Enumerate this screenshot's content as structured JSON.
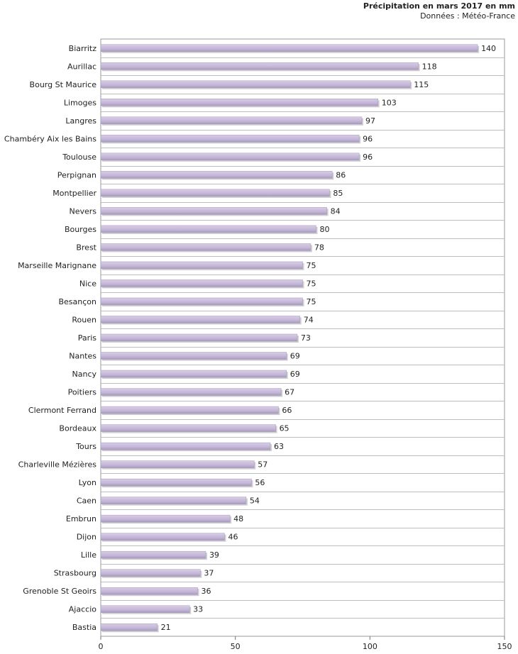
{
  "chart_data": {
    "type": "bar",
    "orientation": "horizontal",
    "title": "Précipitation en mars 2017 en mm",
    "subtitle": "Données : Météo-France",
    "categories": [
      "Biarritz",
      "Aurillac",
      "Bourg St Maurice",
      "Limoges",
      "Langres",
      "Chambéry Aix les Bains",
      "Toulouse",
      "Perpignan",
      "Montpellier",
      "Nevers",
      "Bourges",
      "Brest",
      "Marseille Marignane",
      "Nice",
      "Besançon",
      "Rouen",
      "Paris",
      "Nantes",
      "Nancy",
      "Poitiers",
      "Clermont Ferrand",
      "Bordeaux",
      "Tours",
      "Charleville Mézières",
      "Lyon",
      "Caen",
      "Embrun",
      "Dijon",
      "Lille",
      "Strasbourg",
      "Grenoble St Geoirs",
      "Ajaccio",
      "Bastia"
    ],
    "values": [
      140,
      118,
      115,
      103,
      97,
      96,
      96,
      86,
      85,
      84,
      80,
      78,
      75,
      75,
      75,
      74,
      73,
      69,
      69,
      67,
      66,
      65,
      63,
      57,
      56,
      54,
      48,
      46,
      39,
      37,
      36,
      33,
      21
    ],
    "xlim": [
      0,
      150
    ],
    "xticks": [
      "0",
      "50",
      "100",
      "150"
    ],
    "bar_color": "#c3b6d6",
    "grid": true
  }
}
